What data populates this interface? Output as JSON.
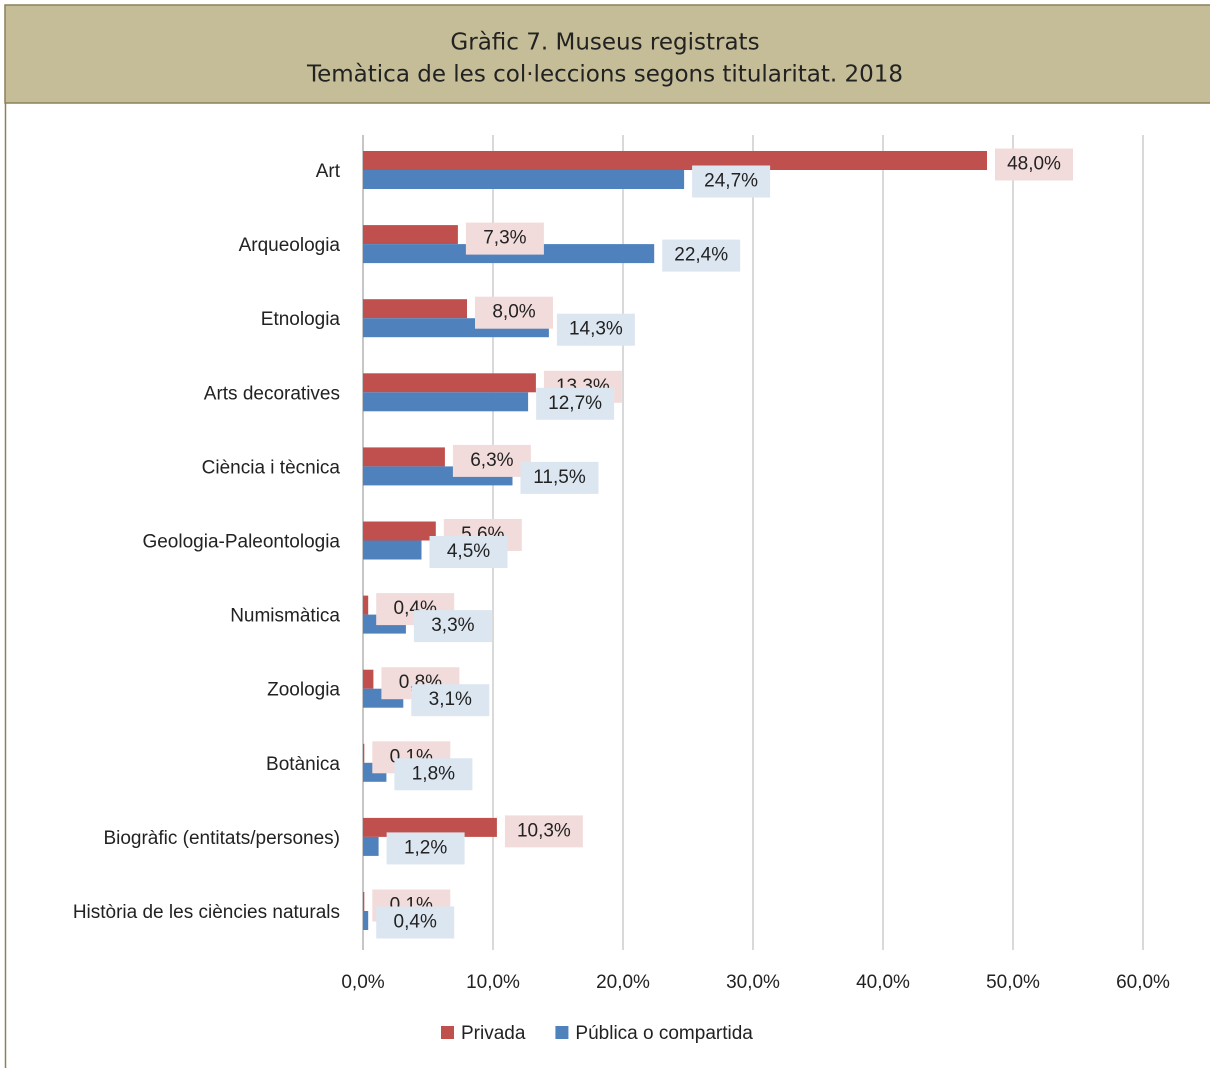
{
  "chart_data": {
    "type": "hbar",
    "title": "Gràfic 7. Museus registrats",
    "subtitle": "Temàtica de les col·leccions segons titularitat. 2018",
    "categories": [
      "Art",
      "Arqueologia",
      "Etnologia",
      "Arts decoratives",
      "Ciència i tècnica",
      "Geologia-Paleontologia",
      "Numismàtica",
      "Zoologia",
      "Botànica",
      "Biogràfic (entitats/persones)",
      "Història de les ciències naturals"
    ],
    "series": [
      {
        "name": "Privada",
        "color": "#c0504d",
        "label_bg": "#f2dcdb",
        "values": [
          48.0,
          7.3,
          8.0,
          13.3,
          6.3,
          5.6,
          0.4,
          0.8,
          0.1,
          10.3,
          0.1
        ],
        "value_labels": [
          "48,0%",
          "7,3%",
          "8,0%",
          "13,3%",
          "6,3%",
          "5,6%",
          "0,4%",
          "0,8%",
          "0,1%",
          "10,3%",
          "0,1%"
        ]
      },
      {
        "name": "Pública o compartida",
        "color": "#4f81bd",
        "label_bg": "#dce6f1",
        "values": [
          24.7,
          22.4,
          14.3,
          12.7,
          11.5,
          4.5,
          3.3,
          3.1,
          1.8,
          1.2,
          0.4
        ],
        "value_labels": [
          "24,7%",
          "22,4%",
          "14,3%",
          "12,7%",
          "11,5%",
          "4,5%",
          "3,3%",
          "3,1%",
          "1,8%",
          "1,2%",
          "0,4%"
        ]
      }
    ],
    "xlim": [
      0,
      60
    ],
    "xticks": [
      {
        "value": 0,
        "label": "0,0%"
      },
      {
        "value": 10,
        "label": "10,0%"
      },
      {
        "value": 20,
        "label": "20,0%"
      },
      {
        "value": 30,
        "label": "30,0%"
      },
      {
        "value": 40,
        "label": "40,0%"
      },
      {
        "value": 50,
        "label": "50,0%"
      },
      {
        "value": 60,
        "label": "60,0%"
      }
    ],
    "grid": true,
    "legend": "bottom"
  }
}
